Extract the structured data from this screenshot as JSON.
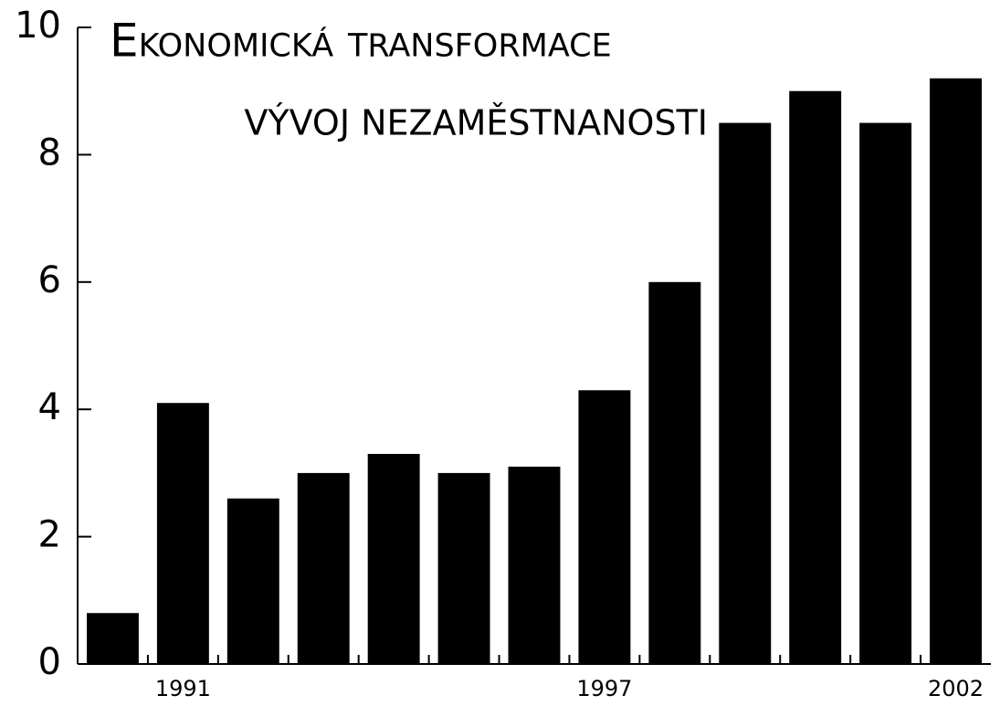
{
  "chart_data": {
    "type": "bar",
    "title": "Ekonomická transformace",
    "subtitle": "VÝVOJ NEZAMĚSTNANOSTI",
    "categories": [
      null,
      "1991",
      null,
      null,
      null,
      null,
      null,
      "1997",
      null,
      null,
      null,
      null,
      "2002"
    ],
    "values": [
      0.8,
      4.1,
      2.6,
      3.0,
      3.3,
      3.0,
      3.1,
      4.3,
      6.0,
      8.5,
      9.0,
      8.5,
      9.2
    ],
    "color": "#000000",
    "ylim": [
      0,
      10
    ],
    "yticks": [
      0,
      2,
      4,
      6,
      8,
      10
    ],
    "grid": false
  }
}
